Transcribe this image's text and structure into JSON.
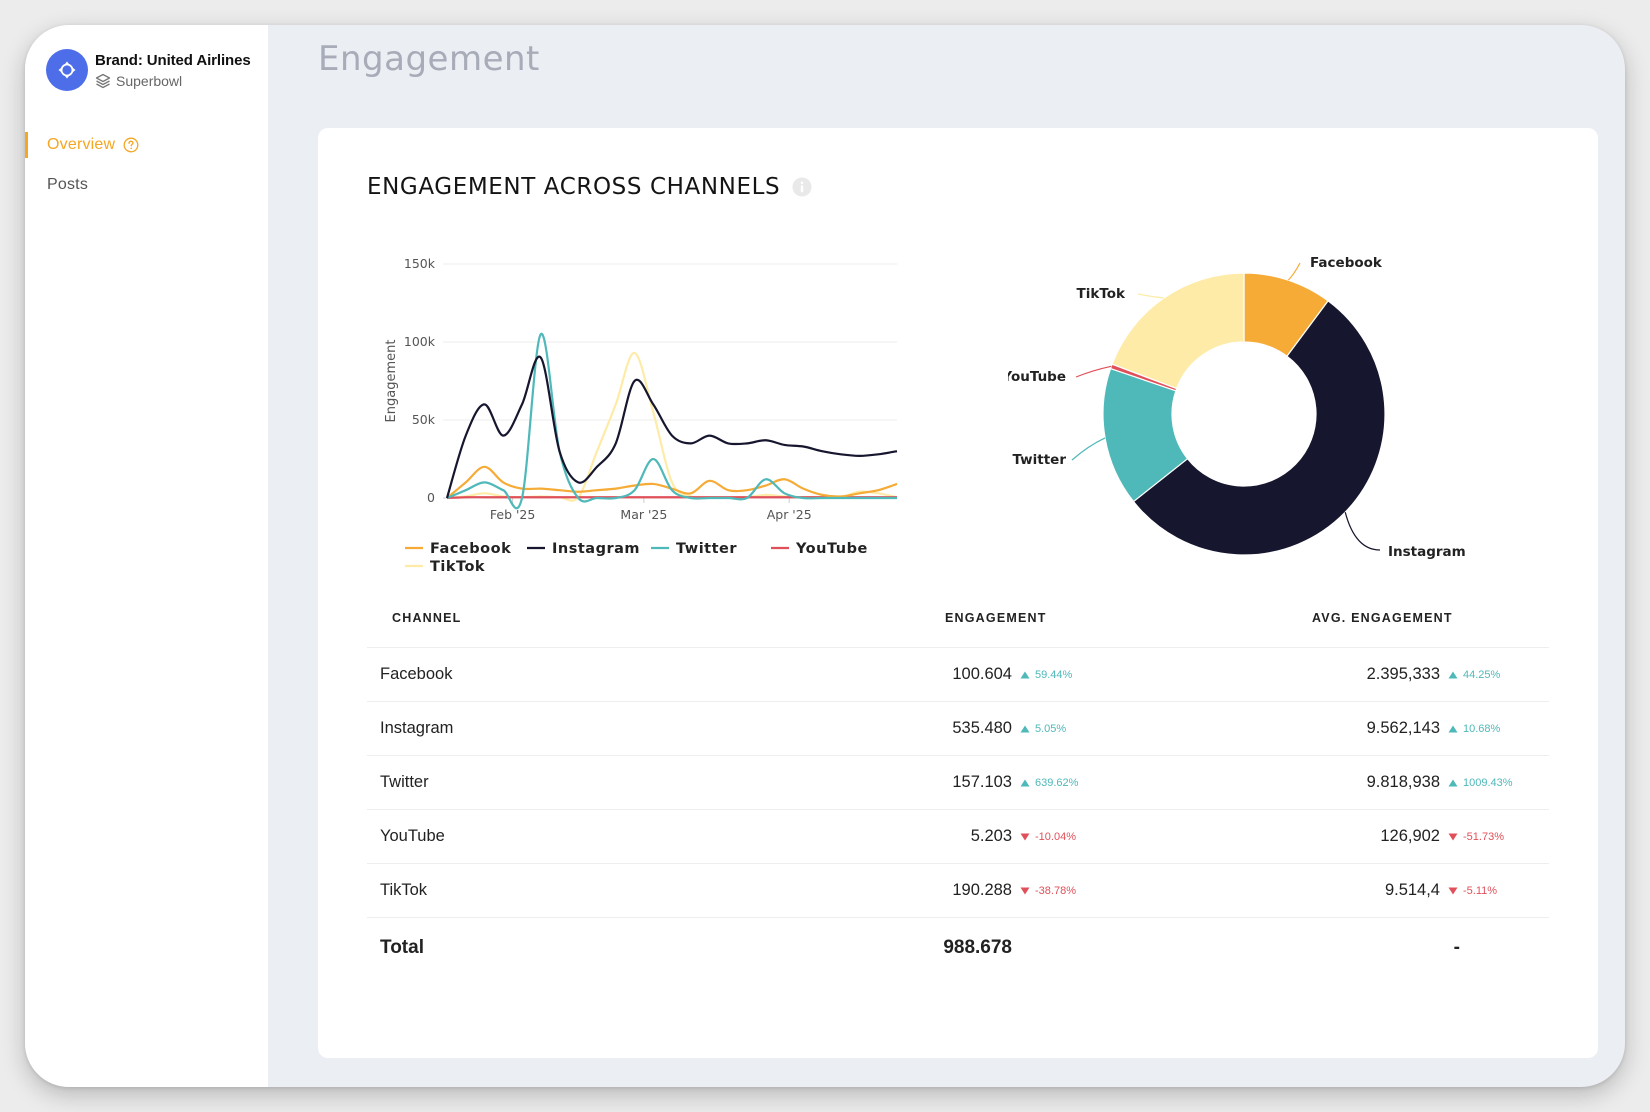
{
  "brand": {
    "name": "Brand: United Airlines",
    "campaign": "Superbowl",
    "avatar_icon": "crosshair-icon",
    "avatar_color": "#4d6ee8"
  },
  "nav": {
    "items": [
      {
        "label": "Overview",
        "active": true,
        "icon": "help-circle-icon"
      },
      {
        "label": "Posts",
        "active": false
      }
    ]
  },
  "page": {
    "title": "Engagement"
  },
  "card": {
    "title": "ENGAGEMENT ACROSS CHANNELS",
    "info_icon": "info-icon"
  },
  "colors": {
    "facebook": "#f5ab35",
    "instagram": "#16162e",
    "twitter": "#4fb8b9",
    "youtube": "#e0505a",
    "tiktok": "#fdeba7",
    "accent": "#f5a623"
  },
  "chart_data": [
    {
      "type": "line",
      "ylabel": "Engagement",
      "ylim": [
        0,
        150000
      ],
      "yticks": [
        "0",
        "50k",
        "100k",
        "150k"
      ],
      "xticks": [
        {
          "label": "Feb '25",
          "x": "2025-02-01"
        },
        {
          "label": "Mar '25",
          "x": "2025-03-01"
        },
        {
          "label": "Apr '25",
          "x": "2025-04-01"
        }
      ],
      "x": [
        "2025-01-18",
        "2025-01-22",
        "2025-01-26",
        "2025-01-30",
        "2025-02-03",
        "2025-02-07",
        "2025-02-11",
        "2025-02-15",
        "2025-02-19",
        "2025-02-23",
        "2025-02-27",
        "2025-03-03",
        "2025-03-07",
        "2025-03-11",
        "2025-03-15",
        "2025-03-19",
        "2025-03-23",
        "2025-03-27",
        "2025-03-31",
        "2025-04-04",
        "2025-04-08",
        "2025-04-12",
        "2025-04-16",
        "2025-04-20",
        "2025-04-24"
      ],
      "series": [
        {
          "name": "Facebook",
          "values": [
            0,
            10000,
            20000,
            10000,
            6000,
            6000,
            5000,
            4000,
            5000,
            6000,
            8000,
            9000,
            6000,
            3000,
            11000,
            5000,
            5000,
            8000,
            12000,
            6000,
            2000,
            1000,
            3000,
            5000,
            9000
          ]
        },
        {
          "name": "Instagram",
          "values": [
            0,
            40000,
            60000,
            40000,
            60000,
            90000,
            30000,
            10000,
            20000,
            35000,
            75000,
            60000,
            40000,
            35000,
            40000,
            35000,
            35000,
            37000,
            34000,
            33000,
            30000,
            28000,
            27000,
            28000,
            30000
          ]
        },
        {
          "name": "Twitter",
          "values": [
            0,
            5000,
            10000,
            5000,
            0,
            105000,
            30000,
            0,
            0,
            0,
            5000,
            25000,
            5000,
            0,
            0,
            0,
            0,
            12000,
            3000,
            0,
            0,
            0,
            0,
            0,
            0
          ]
        },
        {
          "name": "YouTube",
          "values": [
            0,
            500,
            500,
            500,
            500,
            500,
            500,
            500,
            500,
            500,
            500,
            500,
            500,
            500,
            500,
            500,
            500,
            500,
            500,
            500,
            500,
            500,
            500,
            500,
            500
          ]
        },
        {
          "name": "TikTok",
          "values": [
            0,
            1000,
            3000,
            1000,
            500,
            1000,
            500,
            500,
            30000,
            60000,
            93000,
            55000,
            10000,
            1000,
            500,
            500,
            500,
            2000,
            1000,
            500,
            500,
            500,
            4000,
            3000,
            500
          ]
        }
      ],
      "legend": "bottom"
    },
    {
      "type": "pie",
      "donut": true,
      "labels": [
        "Facebook",
        "Instagram",
        "Twitter",
        "YouTube",
        "TikTok"
      ],
      "values": [
        100604,
        535480,
        157103,
        5203,
        190288
      ]
    }
  ],
  "table": {
    "headers": [
      "CHANNEL",
      "ENGAGEMENT",
      "AVG. ENGAGEMENT"
    ],
    "rows": [
      {
        "channel": "Facebook",
        "engagement": "100.604",
        "eng_delta": "59.44%",
        "eng_dir": "up",
        "avg": "2.395,333",
        "avg_delta": "44.25%",
        "avg_dir": "up"
      },
      {
        "channel": "Instagram",
        "engagement": "535.480",
        "eng_delta": "5.05%",
        "eng_dir": "up",
        "avg": "9.562,143",
        "avg_delta": "10.68%",
        "avg_dir": "up"
      },
      {
        "channel": "Twitter",
        "engagement": "157.103",
        "eng_delta": "639.62%",
        "eng_dir": "up",
        "avg": "9.818,938",
        "avg_delta": "1009.43%",
        "avg_dir": "up"
      },
      {
        "channel": "YouTube",
        "engagement": "5.203",
        "eng_delta": "-10.04%",
        "eng_dir": "down",
        "avg": "126,902",
        "avg_delta": "-51.73%",
        "avg_dir": "down"
      },
      {
        "channel": "TikTok",
        "engagement": "190.288",
        "eng_delta": "-38.78%",
        "eng_dir": "down",
        "avg": "9.514,4",
        "avg_delta": "-5.11%",
        "avg_dir": "down"
      }
    ],
    "total": {
      "label": "Total",
      "engagement": "988.678",
      "avg": "-"
    }
  }
}
